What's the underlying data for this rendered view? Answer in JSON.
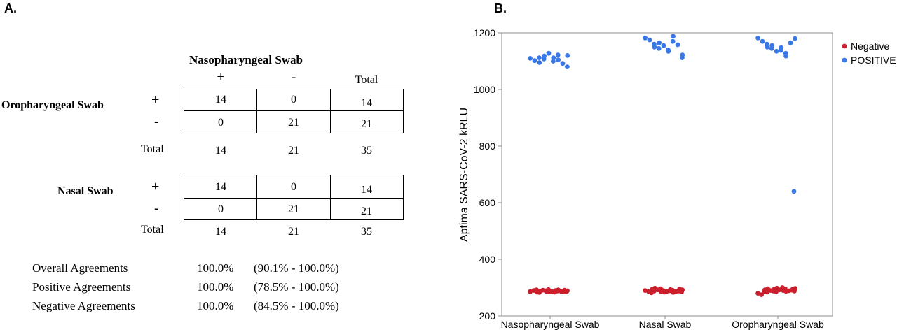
{
  "panel_a": {
    "label": "A.",
    "column_header": "Nasopharyngeal Swab",
    "col_labels": [
      "+",
      "-",
      "Total"
    ],
    "tables": [
      {
        "row_header": "Oropharyngeal Swab",
        "row_labels": [
          "+",
          "-"
        ],
        "cells": [
          [
            "14",
            "0",
            "14"
          ],
          [
            "0",
            "21",
            "21"
          ]
        ],
        "total_label": "Total",
        "totals": [
          "14",
          "21",
          "35"
        ]
      },
      {
        "row_header": "Nasal Swab",
        "row_labels": [
          "+",
          "-"
        ],
        "cells": [
          [
            "14",
            "0",
            "14"
          ],
          [
            "0",
            "21",
            "21"
          ]
        ],
        "total_label": "Total",
        "totals": [
          "14",
          "21",
          "35"
        ]
      }
    ],
    "agreements": [
      {
        "name": "Overall Agreements",
        "value": "100.0%",
        "ci": "(90.1% - 100.0%)"
      },
      {
        "name": "Positive Agreements",
        "value": "100.0%",
        "ci": "(78.5% - 100.0%)"
      },
      {
        "name": "Negative Agreements",
        "value": "100.0%",
        "ci": "(84.5% - 100.0%)"
      }
    ]
  },
  "panel_b": {
    "label": "B."
  },
  "chart_data": {
    "type": "scatter",
    "title": "",
    "ylabel": "Aptima SARS-CoV-2 kRLU",
    "xlabel": "",
    "categories": [
      "Nasopharyngeal Swab",
      "Nasal Swab",
      "Oropharyngeal Swab"
    ],
    "ylim": [
      200,
      1200
    ],
    "yticks": [
      200,
      400,
      600,
      800,
      1000,
      1200
    ],
    "grid": false,
    "legend_position": "top-right",
    "series": [
      {
        "name": "Negative",
        "color": "#cc1f2d",
        "points": [
          [
            0,
            286
          ],
          [
            0,
            290
          ],
          [
            0,
            284
          ],
          [
            0,
            292
          ],
          [
            0,
            288
          ],
          [
            0,
            283
          ],
          [
            0,
            291
          ],
          [
            0,
            287
          ],
          [
            0,
            289
          ],
          [
            0,
            285
          ],
          [
            0,
            293
          ],
          [
            0,
            286
          ],
          [
            0,
            290
          ],
          [
            0,
            284
          ],
          [
            0,
            292
          ],
          [
            0,
            288
          ],
          [
            0,
            287
          ],
          [
            0,
            291
          ],
          [
            0,
            285
          ],
          [
            0,
            289
          ],
          [
            0,
            286
          ],
          [
            1,
            290
          ],
          [
            1,
            286
          ],
          [
            1,
            294
          ],
          [
            1,
            282
          ],
          [
            1,
            298
          ],
          [
            1,
            288
          ],
          [
            1,
            292
          ],
          [
            1,
            285
          ],
          [
            1,
            296
          ],
          [
            1,
            284
          ],
          [
            1,
            290
          ],
          [
            1,
            287
          ],
          [
            1,
            293
          ],
          [
            1,
            289
          ],
          [
            1,
            283
          ],
          [
            1,
            291
          ],
          [
            1,
            286
          ],
          [
            1,
            295
          ],
          [
            1,
            288
          ],
          [
            1,
            292
          ],
          [
            1,
            285
          ],
          [
            2,
            280
          ],
          [
            2,
            275
          ],
          [
            2,
            292
          ],
          [
            2,
            286
          ],
          [
            2,
            296
          ],
          [
            2,
            284
          ],
          [
            2,
            290
          ],
          [
            2,
            294
          ],
          [
            2,
            288
          ],
          [
            2,
            298
          ],
          [
            2,
            286
          ],
          [
            2,
            292
          ],
          [
            2,
            290
          ],
          [
            2,
            300
          ],
          [
            2,
            287
          ],
          [
            2,
            295
          ],
          [
            2,
            289
          ],
          [
            2,
            293
          ],
          [
            2,
            291
          ],
          [
            2,
            297
          ],
          [
            2,
            288
          ]
        ]
      },
      {
        "name": "POSITIVE",
        "color": "#3b78e7",
        "points": [
          [
            0,
            1110
          ],
          [
            0,
            1102
          ],
          [
            0,
            1112
          ],
          [
            0,
            1095
          ],
          [
            0,
            1108
          ],
          [
            0,
            1118
          ],
          [
            0,
            1128
          ],
          [
            0,
            1100
          ],
          [
            0,
            1112
          ],
          [
            0,
            1122
          ],
          [
            0,
            1105
          ],
          [
            0,
            1092
          ],
          [
            0,
            1080
          ],
          [
            0,
            1120
          ],
          [
            1,
            1182
          ],
          [
            1,
            1175
          ],
          [
            1,
            1160
          ],
          [
            1,
            1150
          ],
          [
            1,
            1145
          ],
          [
            1,
            1165
          ],
          [
            1,
            1155
          ],
          [
            1,
            1140
          ],
          [
            1,
            1135
          ],
          [
            1,
            1170
          ],
          [
            1,
            1188
          ],
          [
            1,
            1158
          ],
          [
            1,
            1112
          ],
          [
            1,
            1122
          ],
          [
            2,
            1182
          ],
          [
            2,
            1170
          ],
          [
            2,
            1160
          ],
          [
            2,
            1150
          ],
          [
            2,
            1145
          ],
          [
            2,
            1155
          ],
          [
            2,
            1135
          ],
          [
            2,
            1138
          ],
          [
            2,
            1148
          ],
          [
            2,
            1128
          ],
          [
            2,
            1118
          ],
          [
            2,
            1165
          ],
          [
            2,
            1180
          ],
          [
            2,
            640
          ]
        ]
      }
    ]
  }
}
